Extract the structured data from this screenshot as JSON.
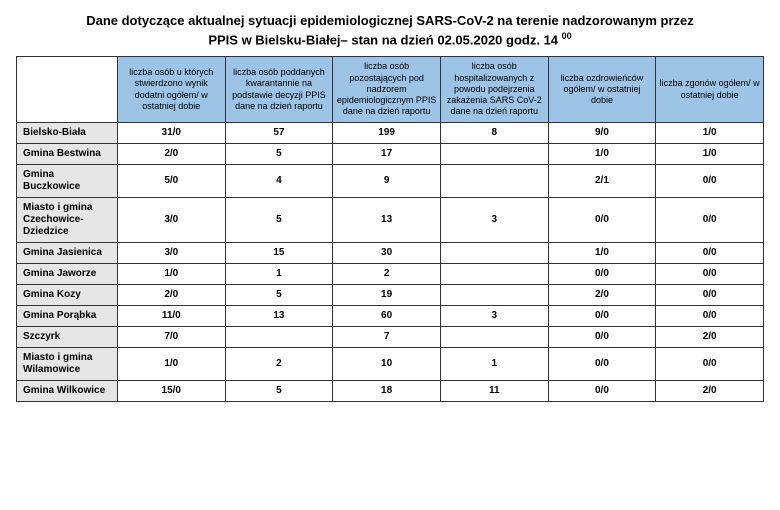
{
  "title_line1": "Dane dotyczące aktualnej sytuacji epidemiologicznej SARS-CoV-2 na terenie nadzorowanym przez",
  "title_line2_pre": "PPIS w Bielsku-Białej– stan na dzień 02.05.2020 godz. 14",
  "title_line2_sup": "00",
  "table": {
    "columns": [
      "liczba osób u których stwierdzono wynik dodatni\nogółem/ w ostatniej dobie",
      "liczba osób poddanych kwarantannie na podstawie decyzji PPIS dane na dzień raportu",
      "liczba osób pozostających pod nadzorem epidemiologicznym PPIS dane na dzień raportu",
      "liczba osób hospitalizowanych z powodu podejrzenia zakażenia SARS CoV-2\ndane na dzień raportu",
      "liczba ozdrowieńców ogółem/ w ostatniej dobie",
      "liczba zgonów ogółem/ w ostatniej dobie"
    ],
    "rows": [
      {
        "name": "Bielsko-Biała",
        "v": [
          "31/0",
          "57",
          "199",
          "8",
          "9/0",
          "1/0"
        ]
      },
      {
        "name": "Gmina Bestwina",
        "v": [
          "2/0",
          "5",
          "17",
          "",
          "1/0",
          "1/0"
        ]
      },
      {
        "name": "Gmina Buczkowice",
        "v": [
          "5/0",
          "4",
          "9",
          "",
          "2/1",
          "0/0"
        ]
      },
      {
        "name": "Miasto i gmina Czechowice-Dziedzice",
        "v": [
          "3/0",
          "5",
          "13",
          "3",
          "0/0",
          "0/0"
        ]
      },
      {
        "name": "Gmina Jasienica",
        "v": [
          "3/0",
          "15",
          "30",
          "",
          "1/0",
          "0/0"
        ]
      },
      {
        "name": "Gmina Jaworze",
        "v": [
          "1/0",
          "1",
          "2",
          "",
          "0/0",
          "0/0"
        ]
      },
      {
        "name": "Gmina Kozy",
        "v": [
          "2/0",
          "5",
          "19",
          "",
          "2/0",
          "0/0"
        ]
      },
      {
        "name": "Gmina Porąbka",
        "v": [
          "11/0",
          "13",
          "60",
          "3",
          "0/0",
          "0/0"
        ]
      },
      {
        "name": "Szczyrk",
        "v": [
          "7/0",
          "",
          "7",
          "",
          "0/0",
          "2/0"
        ]
      },
      {
        "name": "Miasto i gmina Wilamowice",
        "v": [
          "1/0",
          "2",
          "10",
          "1",
          "0/0",
          "0/0"
        ]
      },
      {
        "name": "Gmina Wilkowice",
        "v": [
          "15/0",
          "5",
          "18",
          "11",
          "0/0",
          "2/0"
        ]
      }
    ]
  },
  "style": {
    "header_bg": "#9dc3e6",
    "rowhead_bg": "#e6e6e6",
    "border_color": "#333333",
    "title_fontsize": 13,
    "header_fontsize": 9,
    "cell_fontsize": 10
  }
}
